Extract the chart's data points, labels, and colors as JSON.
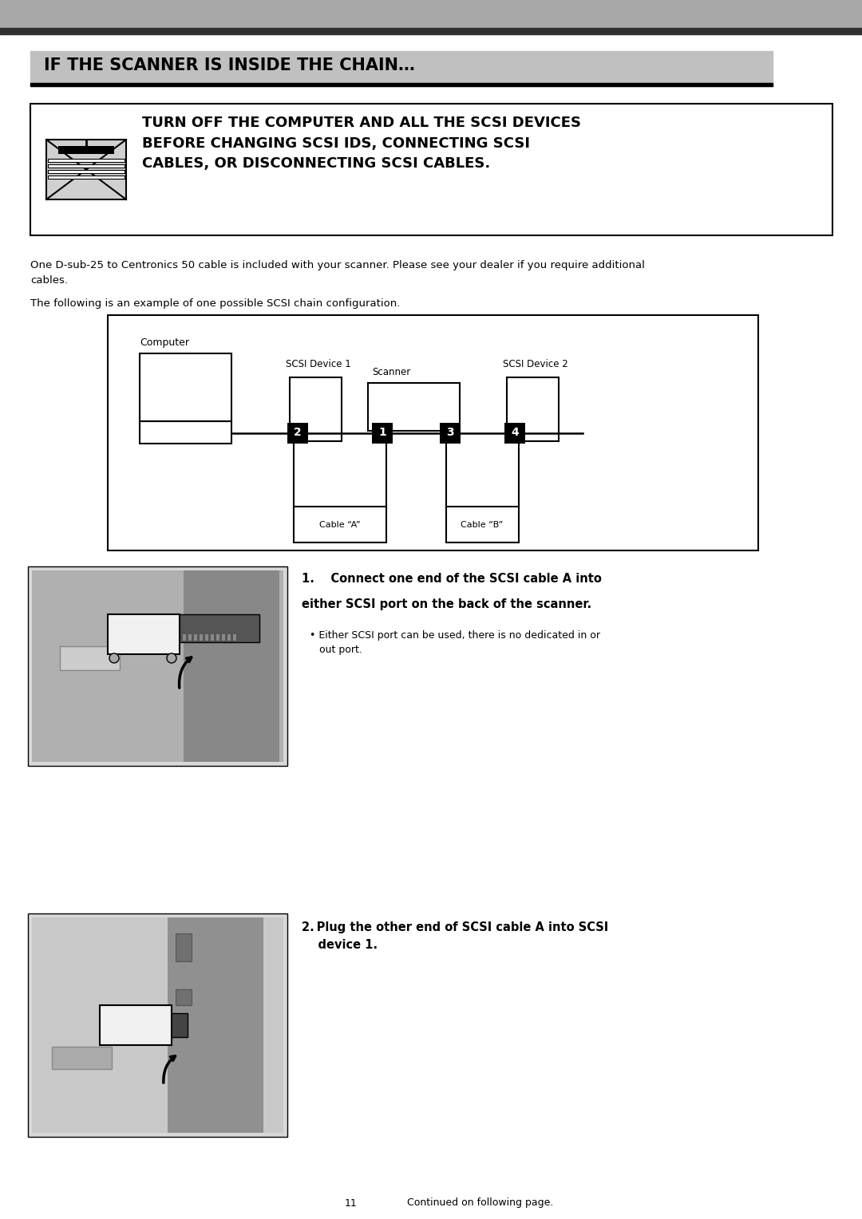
{
  "page_bg": "#ffffff",
  "header_bg": "#c0c0c0",
  "header_text": "IF THE SCANNER IS INSIDE THE CHAIN…",
  "header_text_color": "#000000",
  "header_font_size": 15,
  "warning_text": "TURN OFF THE COMPUTER AND ALL THE SCSI DEVICES\nBEFORE CHANGING SCSI IDS, CONNECTING SCSI\nCABLES, OR DISCONNECTING SCSI CABLES.",
  "warning_font_size": 13,
  "para1": "One D-sub-25 to Centronics 50 cable is included with your scanner. Please see your dealer if you require additional\ncables.",
  "para2": "The following is an example of one possible SCSI chain configuration.",
  "para_font_size": 9.5,
  "diagram_labels": {
    "computer": "Computer",
    "scsi_device_1": "SCSI Device 1",
    "scsi_device_2": "SCSI Device 2",
    "scanner": "Scanner",
    "cable_a": "Cable “A”",
    "cable_b": "Cable “B”"
  },
  "number_labels": [
    "2",
    "1",
    "3",
    "4"
  ],
  "step1_line1": "1.    Connect one end of the SCSI cable A into",
  "step1_line2": "either SCSI port on the back of the scanner.",
  "step1_bullet": "• Either SCSI port can be used, there is no dedicated in or\n   out port.",
  "step2_text": "2. Plug the other end of SCSI cable A into SCSI\n    device 1.",
  "footer_page": "11",
  "footer_text": "Continued on following page.",
  "top_bar_color": "#a8a8a8",
  "dark_bar_color": "#303030"
}
